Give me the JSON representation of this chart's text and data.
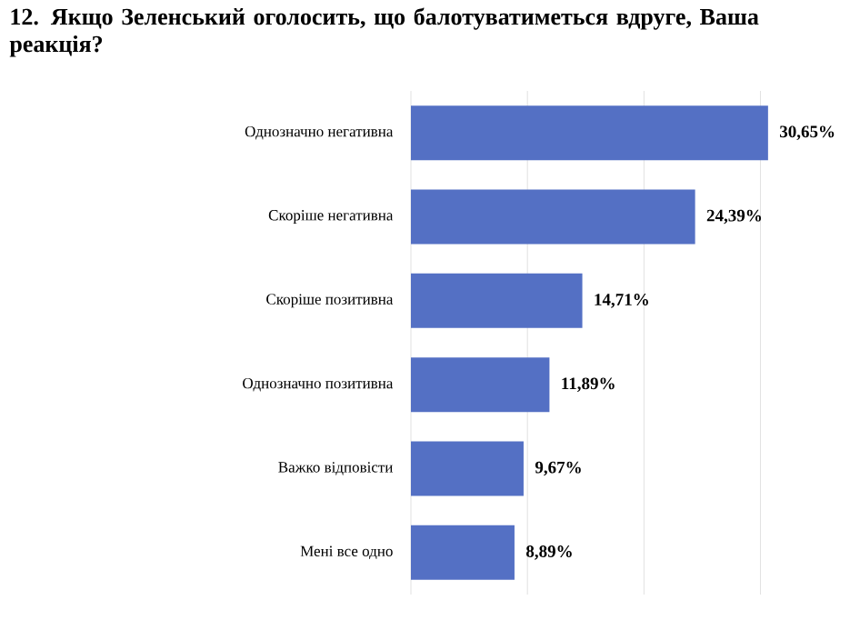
{
  "chart_data": {
    "type": "bar",
    "orientation": "horizontal",
    "title": "12. Якщо Зеленський оголосить, що балотуватиметься вдруге, Ваша реакція?",
    "categories": [
      "Однозначно негативна",
      "Скоріше негативна",
      "Скоріше позитивна",
      "Однозначно позитивна",
      "Важко відповісти",
      "Мені все одно"
    ],
    "values": [
      30.65,
      24.39,
      14.71,
      11.89,
      9.67,
      8.89
    ],
    "value_labels": [
      "30,65%",
      "24,39%",
      "14,71%",
      "11,89%",
      "9,67%",
      "8,89%"
    ],
    "color": "#5470c4",
    "xticks": [
      {
        "value": 0,
        "label": null
      },
      {
        "value": 10,
        "label": null
      },
      {
        "value": 20,
        "label": null
      },
      {
        "value": 30,
        "label": null
      }
    ],
    "tick_labels": "y",
    "grid": "x"
  }
}
